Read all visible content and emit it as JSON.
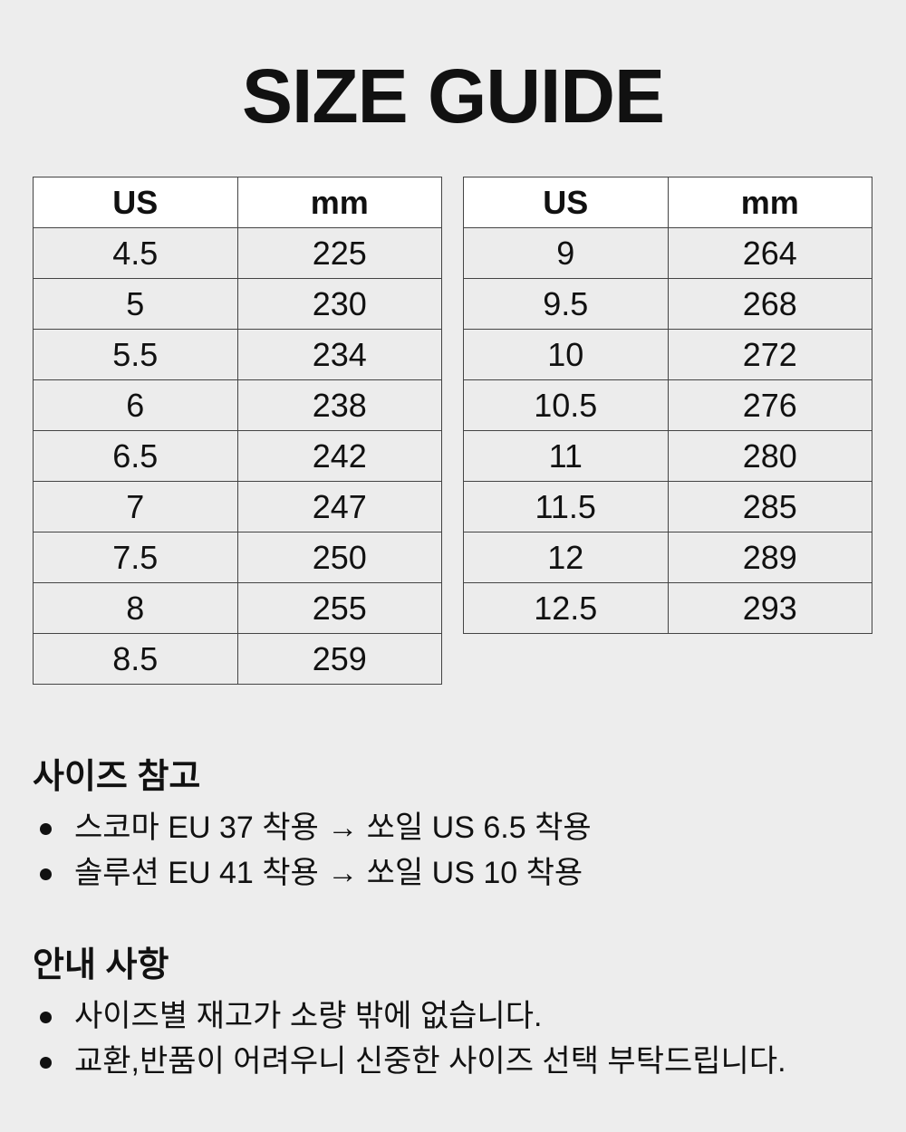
{
  "title": "SIZE GUIDE",
  "tables": [
    {
      "headers": [
        "US",
        "mm"
      ],
      "rows": [
        [
          "4.5",
          "225"
        ],
        [
          "5",
          "230"
        ],
        [
          "5.5",
          "234"
        ],
        [
          "6",
          "238"
        ],
        [
          "6.5",
          "242"
        ],
        [
          "7",
          "247"
        ],
        [
          "7.5",
          "250"
        ],
        [
          "8",
          "255"
        ],
        [
          "8.5",
          "259"
        ]
      ]
    },
    {
      "headers": [
        "US",
        "mm"
      ],
      "rows": [
        [
          "9",
          "264"
        ],
        [
          "9.5",
          "268"
        ],
        [
          "10",
          "272"
        ],
        [
          "10.5",
          "276"
        ],
        [
          "11",
          "280"
        ],
        [
          "11.5",
          "285"
        ],
        [
          "12",
          "289"
        ],
        [
          "12.5",
          "293"
        ]
      ]
    }
  ],
  "sections": [
    {
      "heading": "사이즈 참고",
      "items": [
        "스코마 EU 37 착용 → 쏘일 US 6.5 착용",
        "솔루션 EU 41 착용 → 쏘일 US 10 착용"
      ]
    },
    {
      "heading": "안내 사항",
      "items": [
        "사이즈별 재고가 소량 밖에 없습니다.",
        "교환,반품이 어려우니 신중한 사이즈 선택 부탁드립니다."
      ]
    }
  ]
}
